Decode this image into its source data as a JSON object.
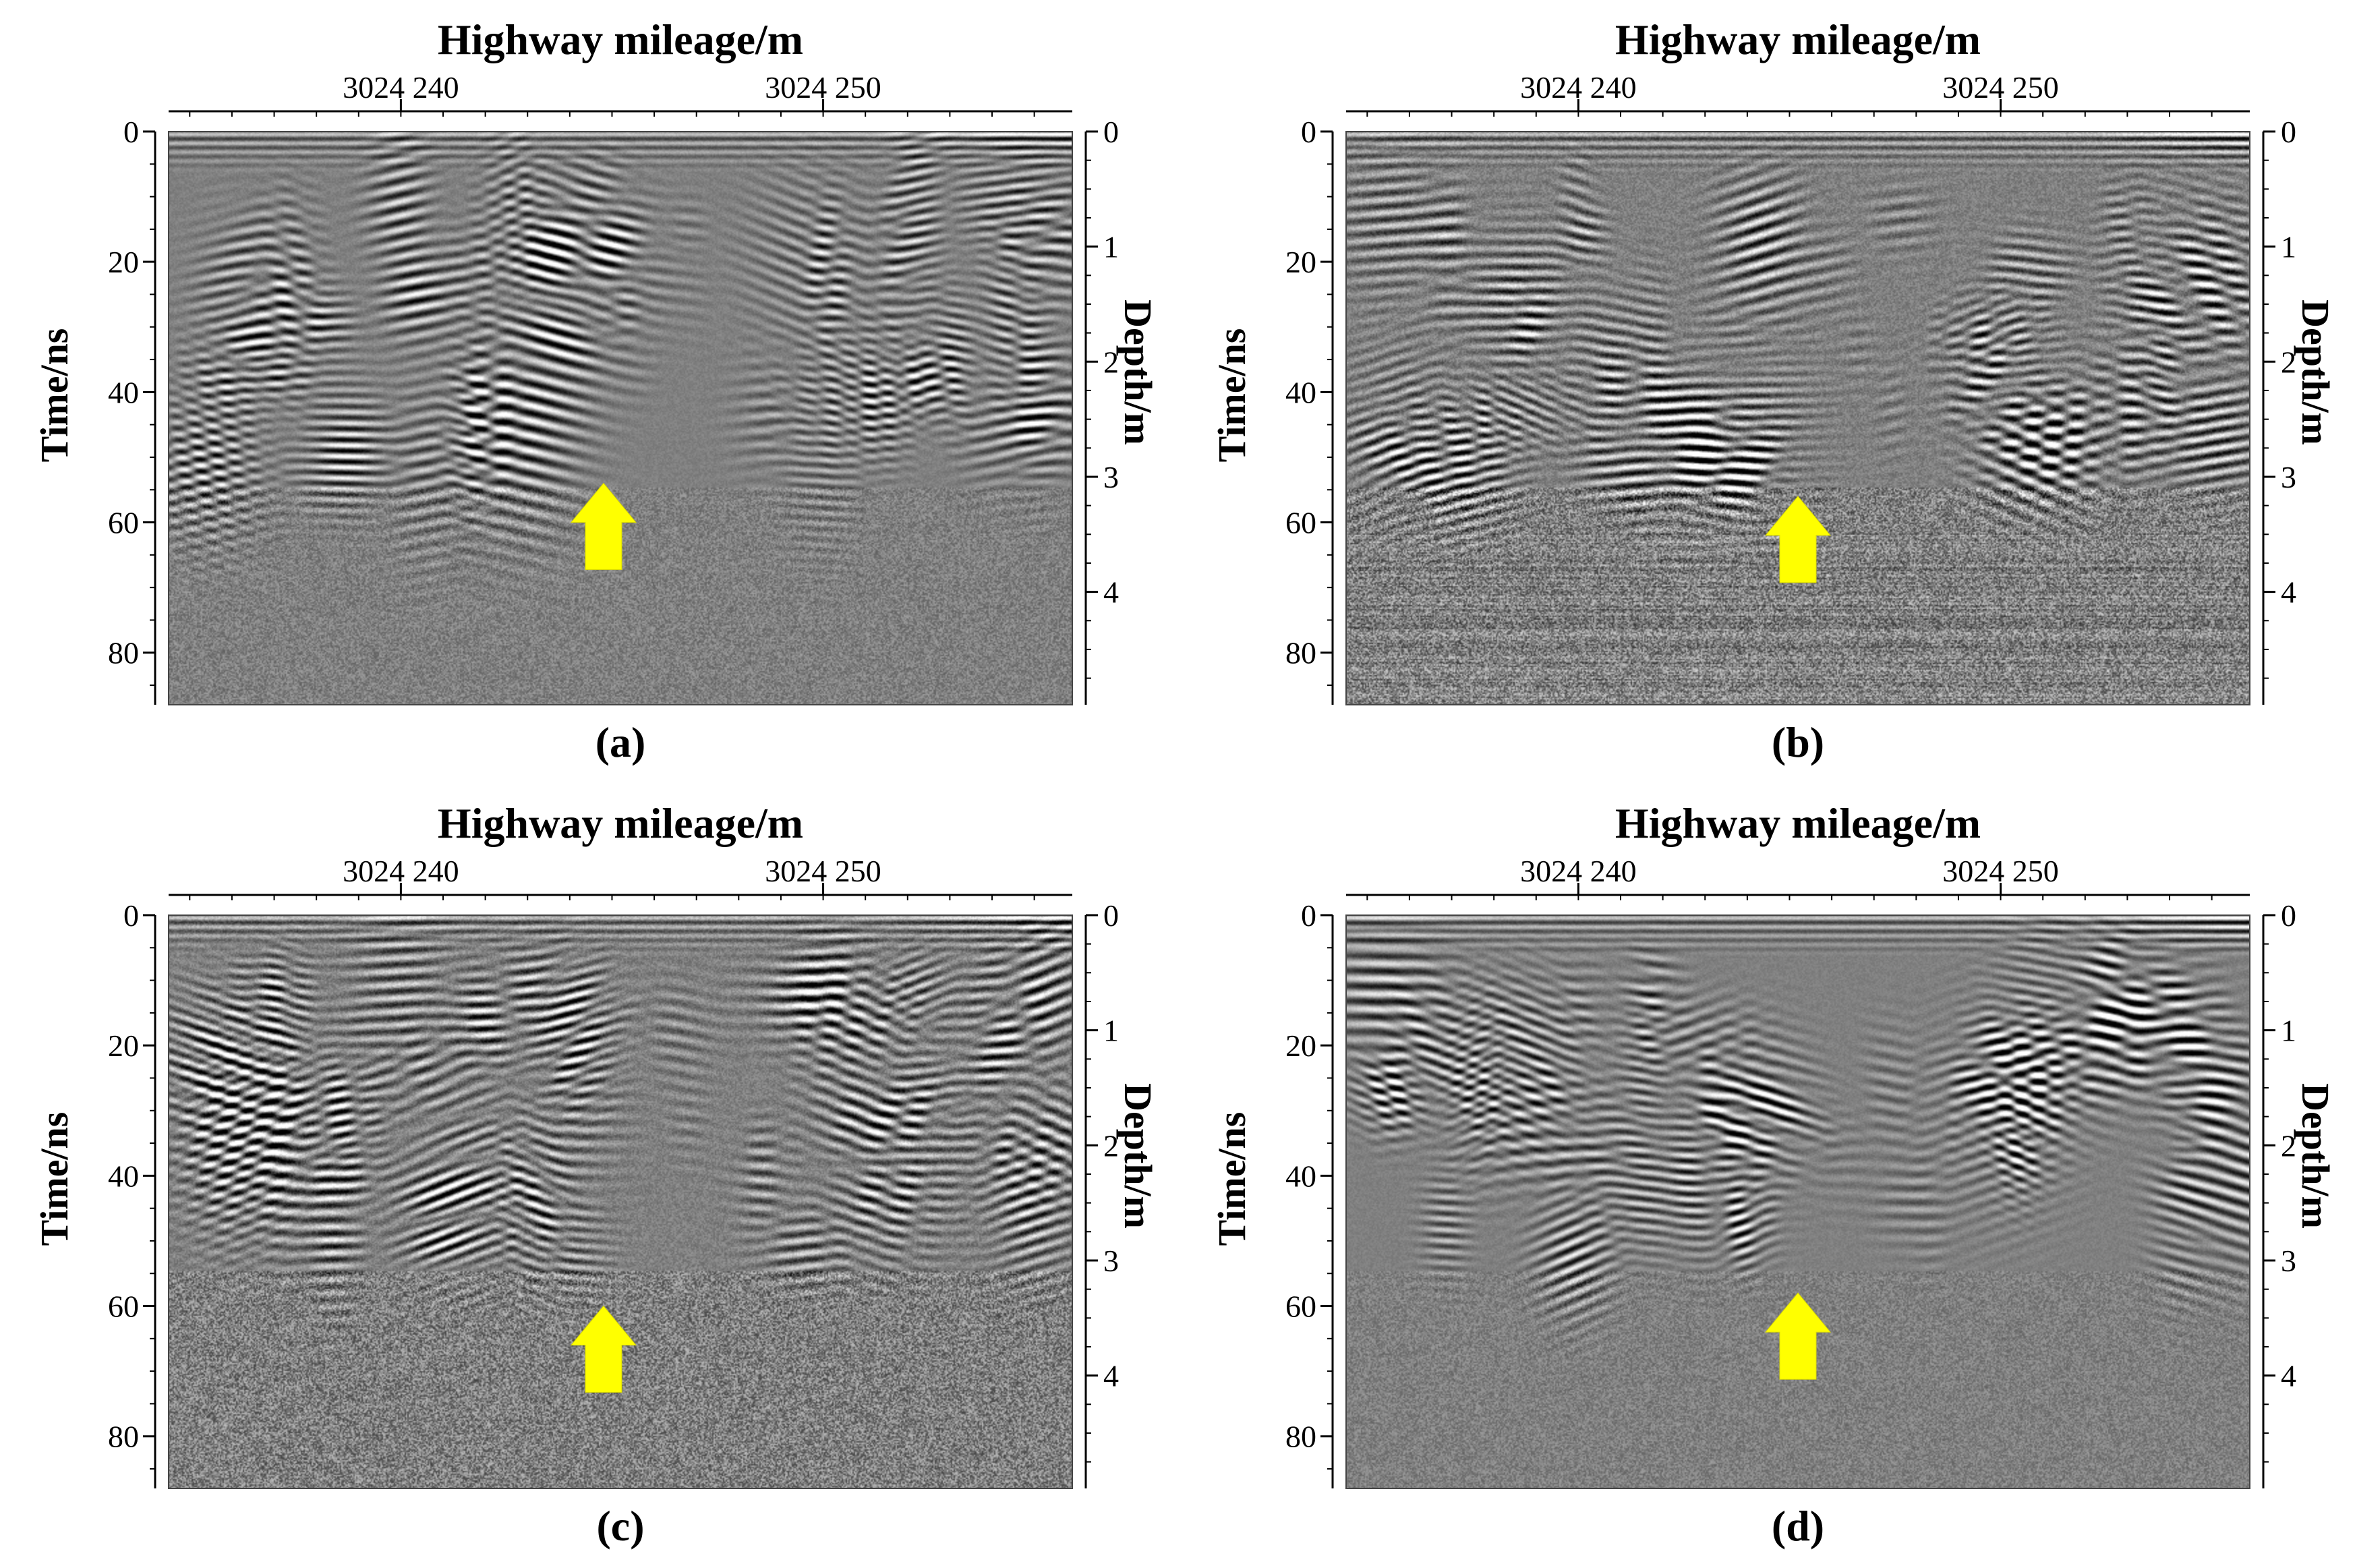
{
  "figure": {
    "panels": [
      {
        "id": "a",
        "caption": "(a)",
        "top_axis_title": "Highway mileage/m",
        "top_ticks": [
          {
            "value": 3024240,
            "label": "3024 240"
          },
          {
            "value": 3024250,
            "label": "3024 250"
          }
        ],
        "mileage_range": [
          3024234.5,
          3024255.9
        ],
        "left_axis_title": "Time/ns",
        "left_ticks": [
          0,
          20,
          40,
          60,
          80
        ],
        "time_range": [
          0,
          88
        ],
        "right_axis_title": "Depth/m",
        "right_ticks": [
          0,
          1,
          2,
          3,
          4
        ],
        "depth_per_ns": 0.0566,
        "arrow": {
          "mileage": 3024244.8,
          "tip_time_ns": 54,
          "color": "#FFFF00"
        },
        "noise_level": 0.5
      },
      {
        "id": "b",
        "caption": "(b)",
        "top_axis_title": "Highway mileage/m",
        "top_ticks": [
          {
            "value": 3024240,
            "label": "3024 240"
          },
          {
            "value": 3024250,
            "label": "3024 250"
          }
        ],
        "mileage_range": [
          3024234.5,
          3024255.9
        ],
        "left_axis_title": "Time/ns",
        "left_ticks": [
          0,
          20,
          40,
          60,
          80
        ],
        "time_range": [
          0,
          88
        ],
        "right_axis_title": "Depth/m",
        "right_ticks": [
          0,
          1,
          2,
          3,
          4
        ],
        "depth_per_ns": 0.0566,
        "arrow": {
          "mileage": 3024245.2,
          "tip_time_ns": 56,
          "color": "#FFFF00"
        },
        "noise_level": 1.0
      },
      {
        "id": "c",
        "caption": "(c)",
        "top_axis_title": "Highway mileage/m",
        "top_ticks": [
          {
            "value": 3024240,
            "label": "3024 240"
          },
          {
            "value": 3024250,
            "label": "3024 250"
          }
        ],
        "mileage_range": [
          3024234.5,
          3024255.9
        ],
        "left_axis_title": "Time/ns",
        "left_ticks": [
          0,
          20,
          40,
          60,
          80
        ],
        "time_range": [
          0,
          88
        ],
        "right_axis_title": "Depth/m",
        "right_ticks": [
          0,
          1,
          2,
          3,
          4
        ],
        "depth_per_ns": 0.0566,
        "arrow": {
          "mileage": 3024244.8,
          "tip_time_ns": 60,
          "color": "#FFFF00"
        },
        "noise_level": 0.95
      },
      {
        "id": "d",
        "caption": "(d)",
        "top_axis_title": "Highway mileage/m",
        "top_ticks": [
          {
            "value": 3024240,
            "label": "3024 240"
          },
          {
            "value": 3024250,
            "label": "3024 250"
          }
        ],
        "mileage_range": [
          3024234.5,
          3024255.9
        ],
        "left_axis_title": "Time/ns",
        "left_ticks": [
          0,
          20,
          40,
          60,
          80
        ],
        "time_range": [
          0,
          88
        ],
        "right_axis_title": "Depth/m",
        "right_ticks": [
          0,
          1,
          2,
          3,
          4
        ],
        "depth_per_ns": 0.0566,
        "arrow": {
          "mileage": 3024245.2,
          "tip_time_ns": 58,
          "color": "#FFFF00"
        },
        "noise_level": 0.45
      }
    ]
  }
}
